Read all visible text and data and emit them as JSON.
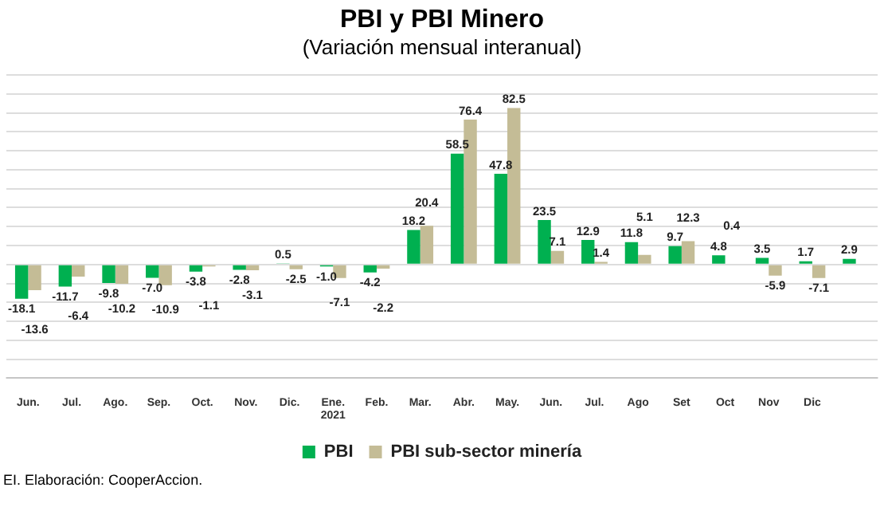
{
  "chart_data": {
    "type": "bar",
    "title": "PBI y PBI Minero",
    "subtitle": "(Variación mensual interanual)",
    "categories": [
      "Jun.",
      "Jul.",
      "Ago.",
      "Sep.",
      "Oct.",
      "Nov.",
      "Dic.",
      "Ene.\n2021",
      "Feb.",
      "Mar.",
      "Abr.",
      "May.",
      "Jun.",
      "Jul.",
      "Ago",
      "Set",
      "Oct",
      "Nov",
      "Dic",
      null
    ],
    "series": [
      {
        "name": "PBI",
        "color": "#00b050",
        "values": [
          -18.1,
          -11.7,
          -9.8,
          -7.0,
          -3.8,
          -2.8,
          0.5,
          -1.0,
          -4.2,
          18.2,
          58.5,
          47.8,
          23.5,
          12.9,
          11.8,
          9.7,
          4.8,
          3.5,
          1.7,
          2.9
        ],
        "value_labels": [
          "-18.1",
          "-11.7",
          "-9.8",
          "-7.0",
          "-3.8",
          "-2.8",
          "0.5",
          "-1.0",
          "-4.2",
          "18.2",
          "58.5",
          "47.8",
          "23.5",
          "12.9",
          "11.8",
          "9.7",
          "4.8",
          "3.5",
          "1.7",
          "2.9"
        ]
      },
      {
        "name": "PBI sub-sector minería",
        "color": "#c4bc96",
        "values": [
          -13.6,
          -6.4,
          -10.2,
          -10.9,
          -1.1,
          -3.1,
          -2.5,
          -7.1,
          -2.2,
          20.4,
          76.4,
          82.5,
          7.1,
          1.4,
          5.1,
          12.3,
          0.4,
          -5.9,
          -7.1,
          null
        ],
        "value_labels": [
          "-13.6",
          "-6.4",
          "-10.2",
          "-10.9",
          "-1.1",
          "-3.1",
          "-2.5",
          "-7.1",
          "-2.2",
          "20.4",
          "76.4",
          "82.5",
          "7.1",
          "1.4",
          "5.1",
          "12.3",
          "0.4",
          "-5.9",
          "-7.1",
          null
        ]
      }
    ],
    "ylim": [
      -60,
      100
    ],
    "yticks": [
      {
        "value": -60,
        "label": null
      },
      {
        "value": -50,
        "label": null
      },
      {
        "value": -40,
        "label": null
      },
      {
        "value": -30,
        "label": null
      },
      {
        "value": -20,
        "label": null
      },
      {
        "value": -10,
        "label": null
      },
      {
        "value": 0,
        "label": null
      },
      {
        "value": 10,
        "label": null
      },
      {
        "value": 20,
        "label": null
      },
      {
        "value": 30,
        "label": null
      },
      {
        "value": 40,
        "label": null
      },
      {
        "value": 50,
        "label": null
      },
      {
        "value": 60,
        "label": null
      },
      {
        "value": 70,
        "label": null
      },
      {
        "value": 80,
        "label": null
      },
      {
        "value": 90,
        "label": null
      },
      {
        "value": 100,
        "label": null
      }
    ],
    "tick_labels": "x",
    "grid": "y",
    "legend": "bottom",
    "annotations": [
      "EI. Elaboración: CooperAccion."
    ]
  }
}
